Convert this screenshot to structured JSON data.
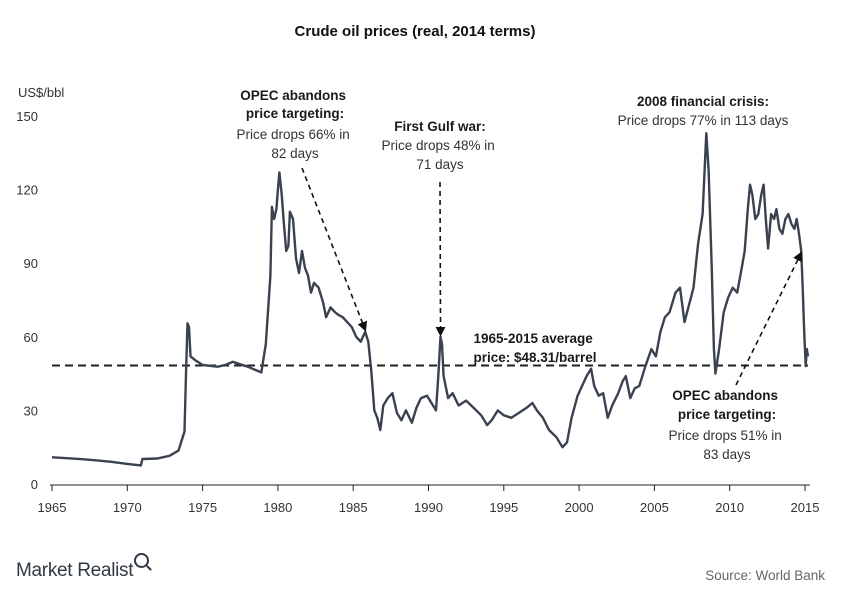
{
  "chart_data": {
    "type": "line",
    "title": "Crude oil prices (real, 2014 terms)",
    "ylabel": "US$/bbl",
    "xlim": [
      1965,
      2015.2
    ],
    "ylim": [
      0,
      150
    ],
    "x_ticks": [
      "1965",
      "1970",
      "1975",
      "1980",
      "1985",
      "1990",
      "1995",
      "2000",
      "2005",
      "2010",
      "2015"
    ],
    "y_ticks": [
      "0",
      "30",
      "60",
      "90",
      "120",
      "150"
    ],
    "series": [
      {
        "color": "#3a4250",
        "points": [
          [
            1965.0,
            10.9
          ],
          [
            1966.0,
            10.5
          ],
          [
            1967.0,
            10.1
          ],
          [
            1968.0,
            9.6
          ],
          [
            1969.0,
            9.0
          ],
          [
            1970.0,
            8.2
          ],
          [
            1970.9,
            7.6
          ],
          [
            1971.0,
            10.2
          ],
          [
            1972.0,
            10.4
          ],
          [
            1972.8,
            11.5
          ],
          [
            1973.4,
            13.6
          ],
          [
            1973.8,
            21.4
          ],
          [
            1973.9,
            45.0
          ],
          [
            1974.0,
            65.5
          ],
          [
            1974.1,
            64.0
          ],
          [
            1974.2,
            52.0
          ],
          [
            1974.5,
            50.5
          ],
          [
            1975.0,
            48.5
          ],
          [
            1976.0,
            47.8
          ],
          [
            1976.5,
            48.5
          ],
          [
            1977.0,
            49.8
          ],
          [
            1977.5,
            48.8
          ],
          [
            1978.0,
            47.8
          ],
          [
            1978.5,
            46.5
          ],
          [
            1978.9,
            45.5
          ],
          [
            1979.2,
            57.0
          ],
          [
            1979.5,
            85.0
          ],
          [
            1979.6,
            113.0
          ],
          [
            1979.75,
            108.0
          ],
          [
            1979.9,
            112.0
          ],
          [
            1980.0,
            120.0
          ],
          [
            1980.1,
            127.0
          ],
          [
            1980.25,
            118.0
          ],
          [
            1980.4,
            106.0
          ],
          [
            1980.55,
            95.0
          ],
          [
            1980.7,
            97.0
          ],
          [
            1980.8,
            111.0
          ],
          [
            1981.0,
            108.0
          ],
          [
            1981.2,
            92.0
          ],
          [
            1981.4,
            86.0
          ],
          [
            1981.6,
            95.0
          ],
          [
            1981.8,
            88.0
          ],
          [
            1982.0,
            85.0
          ],
          [
            1982.2,
            78.0
          ],
          [
            1982.4,
            82.0
          ],
          [
            1982.7,
            80.0
          ],
          [
            1983.0,
            74.0
          ],
          [
            1983.2,
            68.0
          ],
          [
            1983.5,
            72.0
          ],
          [
            1983.8,
            70.0
          ],
          [
            1984.0,
            69.0
          ],
          [
            1984.3,
            68.0
          ],
          [
            1984.6,
            66.0
          ],
          [
            1984.9,
            64.0
          ],
          [
            1985.2,
            60.0
          ],
          [
            1985.5,
            58.0
          ],
          [
            1985.8,
            62.0
          ],
          [
            1986.0,
            58.0
          ],
          [
            1986.2,
            46.0
          ],
          [
            1986.4,
            30.0
          ],
          [
            1986.6,
            27.0
          ],
          [
            1986.8,
            22.0
          ],
          [
            1987.0,
            32.0
          ],
          [
            1987.3,
            35.0
          ],
          [
            1987.6,
            37.0
          ],
          [
            1987.9,
            29.0
          ],
          [
            1988.2,
            26.0
          ],
          [
            1988.5,
            30.0
          ],
          [
            1988.9,
            25.0
          ],
          [
            1989.2,
            31.0
          ],
          [
            1989.5,
            35.0
          ],
          [
            1989.9,
            36.0
          ],
          [
            1990.2,
            33.0
          ],
          [
            1990.5,
            30.0
          ],
          [
            1990.65,
            44.0
          ],
          [
            1990.8,
            60.0
          ],
          [
            1990.9,
            57.0
          ],
          [
            1991.0,
            44.0
          ],
          [
            1991.3,
            35.0
          ],
          [
            1991.6,
            37.0
          ],
          [
            1992.0,
            32.0
          ],
          [
            1992.5,
            34.0
          ],
          [
            1993.0,
            31.0
          ],
          [
            1993.5,
            28.0
          ],
          [
            1993.9,
            24.0
          ],
          [
            1994.2,
            26.0
          ],
          [
            1994.6,
            30.0
          ],
          [
            1995.0,
            28.0
          ],
          [
            1995.5,
            27.0
          ],
          [
            1996.0,
            29.0
          ],
          [
            1996.5,
            31.0
          ],
          [
            1996.9,
            33.0
          ],
          [
            1997.2,
            30.0
          ],
          [
            1997.6,
            27.0
          ],
          [
            1998.0,
            22.0
          ],
          [
            1998.5,
            19.0
          ],
          [
            1998.9,
            15.0
          ],
          [
            1999.2,
            17.0
          ],
          [
            1999.5,
            27.0
          ],
          [
            1999.9,
            36.0
          ],
          [
            2000.2,
            40.0
          ],
          [
            2000.5,
            44.0
          ],
          [
            2000.8,
            47.0
          ],
          [
            2001.0,
            40.0
          ],
          [
            2001.3,
            36.0
          ],
          [
            2001.6,
            37.0
          ],
          [
            2001.9,
            27.0
          ],
          [
            2002.2,
            32.0
          ],
          [
            2002.6,
            37.0
          ],
          [
            2002.9,
            42.0
          ],
          [
            2003.1,
            44.0
          ],
          [
            2003.4,
            35.0
          ],
          [
            2003.7,
            39.0
          ],
          [
            2004.0,
            40.0
          ],
          [
            2004.4,
            48.0
          ],
          [
            2004.8,
            55.0
          ],
          [
            2005.1,
            52.0
          ],
          [
            2005.4,
            62.0
          ],
          [
            2005.7,
            68.0
          ],
          [
            2006.0,
            70.0
          ],
          [
            2006.4,
            78.0
          ],
          [
            2006.7,
            80.0
          ],
          [
            2007.0,
            66.0
          ],
          [
            2007.3,
            73.0
          ],
          [
            2007.6,
            80.0
          ],
          [
            2007.9,
            98.0
          ],
          [
            2008.2,
            110.0
          ],
          [
            2008.45,
            143.0
          ],
          [
            2008.6,
            128.0
          ],
          [
            2008.8,
            90.0
          ],
          [
            2008.95,
            55.0
          ],
          [
            2009.05,
            45.0
          ],
          [
            2009.3,
            55.0
          ],
          [
            2009.6,
            70.0
          ],
          [
            2009.9,
            76.0
          ],
          [
            2010.2,
            80.0
          ],
          [
            2010.5,
            78.0
          ],
          [
            2010.8,
            88.0
          ],
          [
            2011.0,
            95.0
          ],
          [
            2011.2,
            112.0
          ],
          [
            2011.35,
            122.0
          ],
          [
            2011.5,
            118.0
          ],
          [
            2011.7,
            108.0
          ],
          [
            2011.9,
            110.0
          ],
          [
            2012.1,
            118.0
          ],
          [
            2012.25,
            122.0
          ],
          [
            2012.4,
            108.0
          ],
          [
            2012.55,
            96.0
          ],
          [
            2012.75,
            110.0
          ],
          [
            2012.95,
            108.0
          ],
          [
            2013.1,
            112.0
          ],
          [
            2013.3,
            104.0
          ],
          [
            2013.5,
            102.0
          ],
          [
            2013.7,
            108.0
          ],
          [
            2013.9,
            110.0
          ],
          [
            2014.1,
            106.0
          ],
          [
            2014.3,
            104.0
          ],
          [
            2014.45,
            108.0
          ],
          [
            2014.6,
            102.0
          ],
          [
            2014.75,
            95.0
          ],
          [
            2014.85,
            80.0
          ],
          [
            2014.95,
            62.0
          ],
          [
            2015.05,
            48.0
          ],
          [
            2015.12,
            55.0
          ],
          [
            2015.2,
            52.0
          ]
        ]
      }
    ],
    "reference_line": {
      "value": 48.31
    },
    "annotations": [
      {
        "bold": "OPEC abandons\nprice targeting:",
        "text": "Price drops 66% in\n82 days",
        "target": [
          1985.8,
          62.0
        ]
      },
      {
        "bold": "First Gulf war:",
        "text": "Price drops 48% in\n71 days",
        "target": [
          1990.8,
          60.0
        ]
      },
      {
        "bold": "1965-2015 average\nprice: $48.31/barrel",
        "text": ""
      },
      {
        "bold": "2008 financial crisis:",
        "text": "Price drops 77% in 113 days"
      },
      {
        "bold": "OPEC abandons\nprice targeting:",
        "text": "Price drops 51% in\n83 days",
        "target": [
          2014.75,
          95.0
        ]
      }
    ]
  },
  "footer": {
    "brand": "Market Realist",
    "source": "Source: World Bank"
  }
}
